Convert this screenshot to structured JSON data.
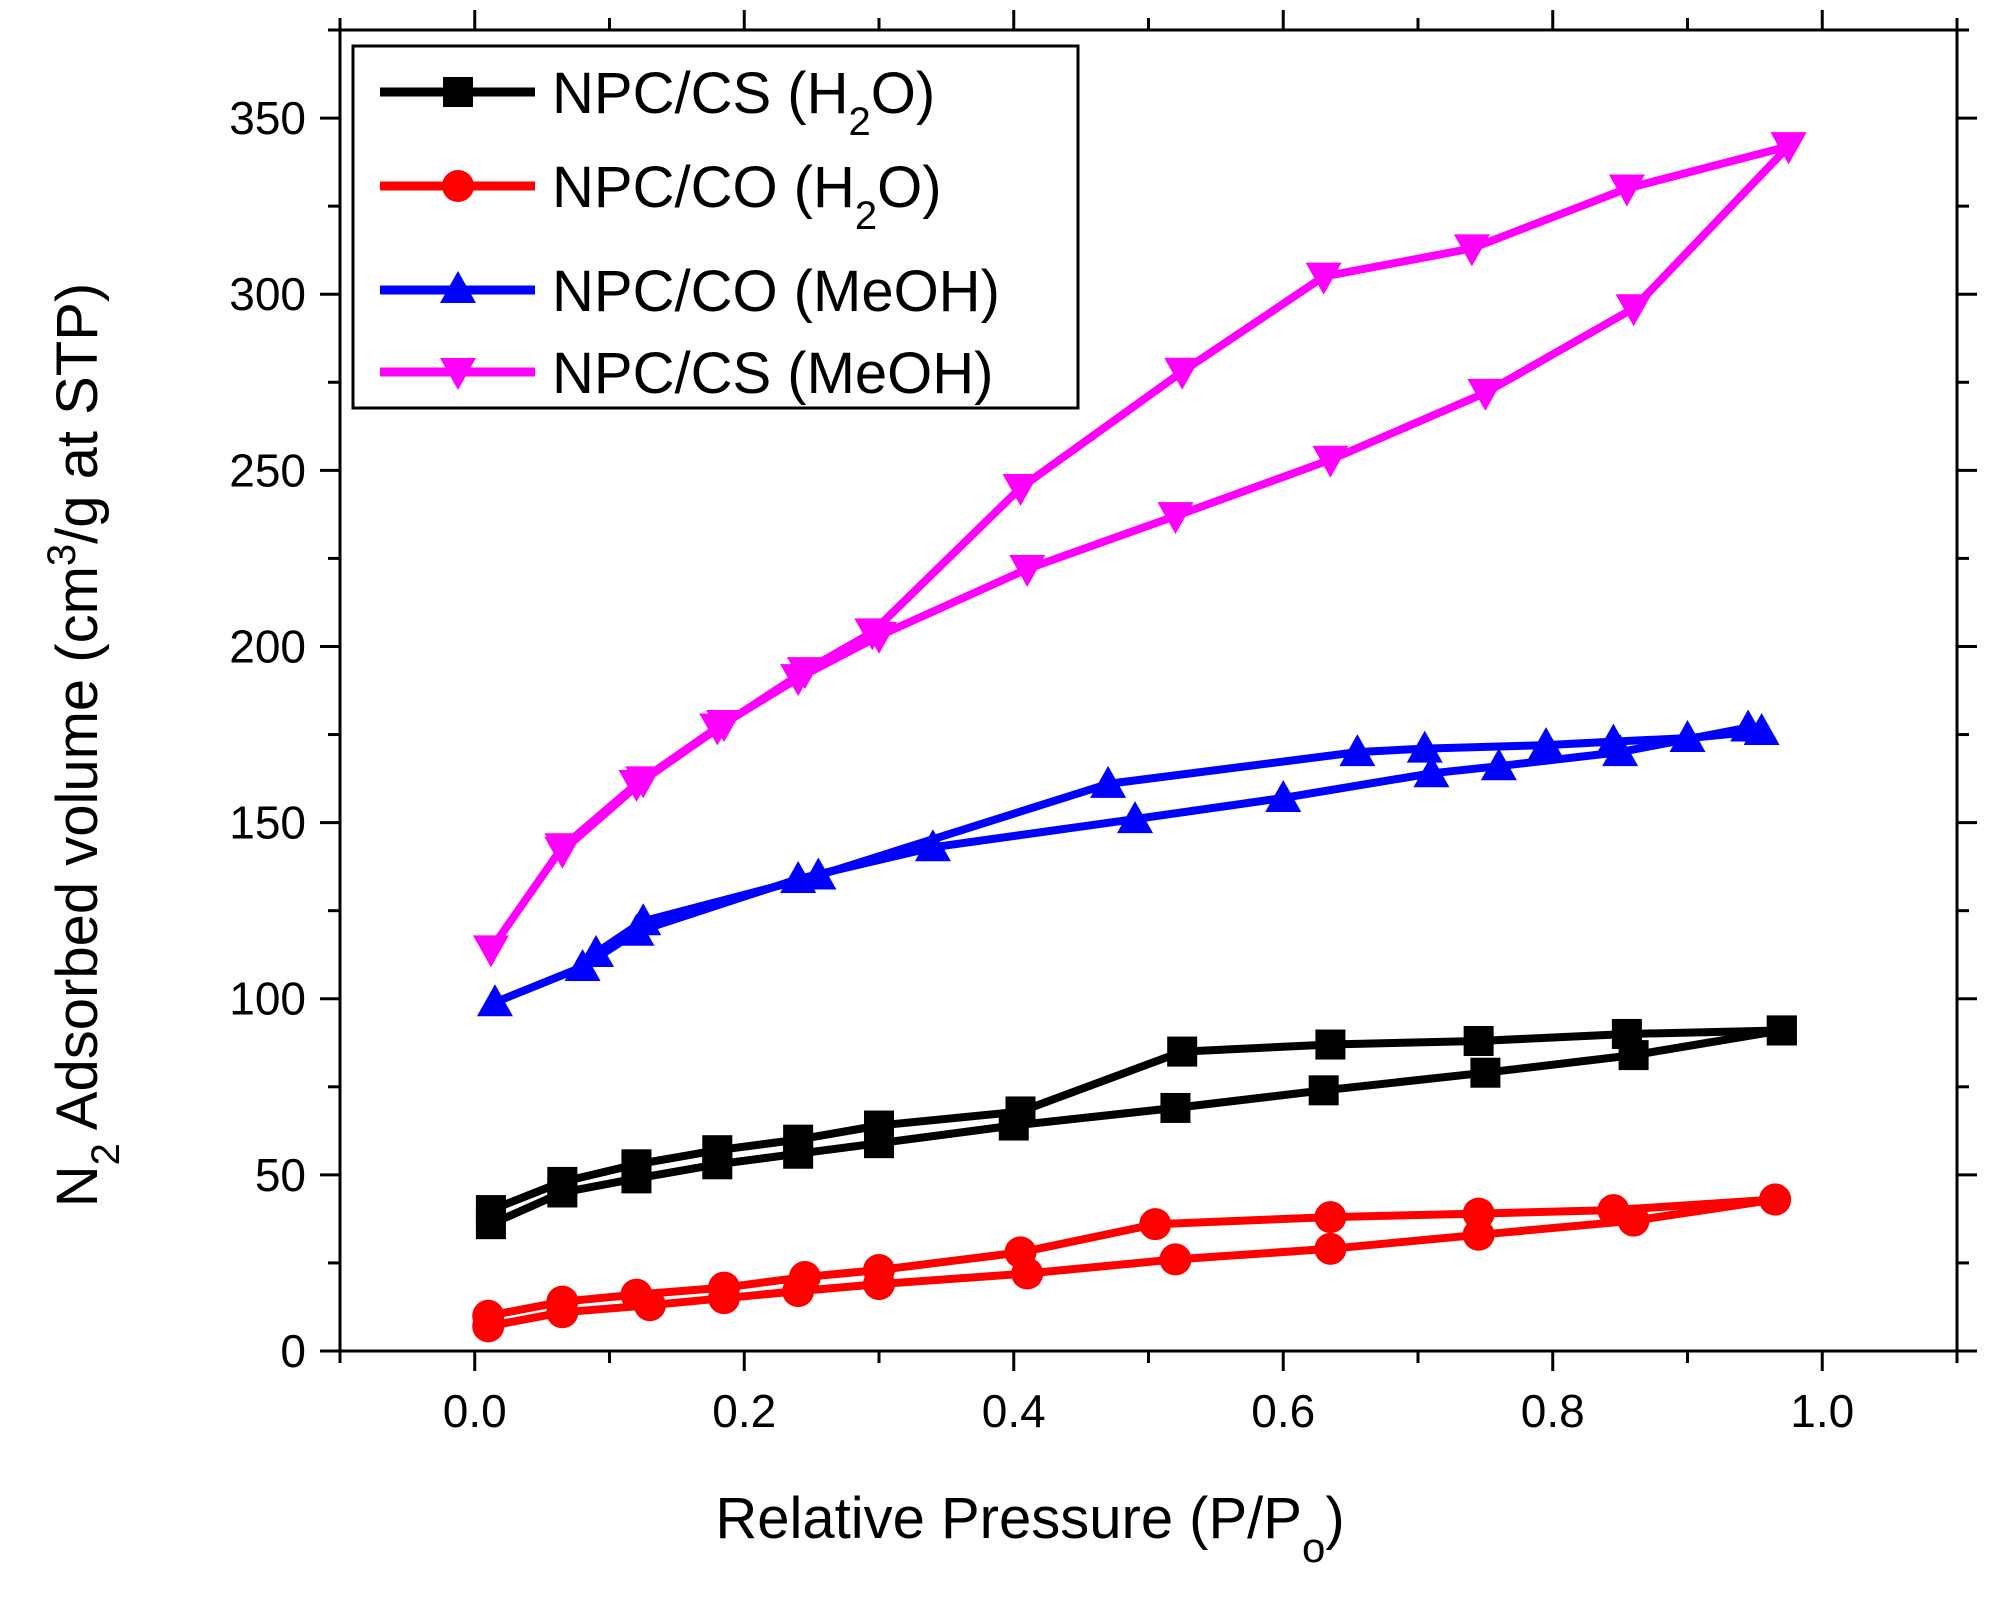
{
  "chart_data": {
    "type": "line",
    "xlabel": "Relative Pressure (P/P",
    "xlabel_sub": "o",
    "xlabel_end": ")",
    "ylabel_n": "N",
    "ylabel_n_sub": "2",
    "ylabel_mid": " Adsorbed volume (cm",
    "ylabel_sup": "3",
    "ylabel_end": "/g at STP)",
    "xlim": [
      -0.1,
      1.1
    ],
    "ylim": [
      0,
      375
    ],
    "xticks": [
      0.0,
      0.2,
      0.4,
      0.6,
      0.8,
      1.0
    ],
    "xtick_labels": [
      "0.0",
      "0.2",
      "0.4",
      "0.6",
      "0.8",
      "1.0"
    ],
    "yticks": [
      0,
      50,
      100,
      150,
      200,
      250,
      300,
      350
    ],
    "ytick_labels": [
      "0",
      "50",
      "100",
      "150",
      "200",
      "250",
      "300",
      "350"
    ],
    "legend_position": "top-left",
    "series": [
      {
        "name": "NPC/CS (H2O)",
        "label_main": "NPC/CS (H",
        "label_sub": "2",
        "label_end": "O)",
        "color": "#000000",
        "marker": "square",
        "adsorption": {
          "x": [
            0.012,
            0.065,
            0.12,
            0.18,
            0.24,
            0.3,
            0.4,
            0.52,
            0.63,
            0.75,
            0.86,
            0.97
          ],
          "y": [
            36,
            45,
            49,
            53,
            56,
            59,
            64,
            69,
            74,
            79,
            84,
            91
          ]
        },
        "desorption": {
          "x": [
            0.97,
            0.855,
            0.745,
            0.635,
            0.525,
            0.405,
            0.3,
            0.24,
            0.18,
            0.12,
            0.065,
            0.012
          ],
          "y": [
            91,
            90,
            88,
            87,
            85,
            68,
            64,
            60,
            57,
            53,
            48,
            40
          ]
        }
      },
      {
        "name": "NPC/CO (H2O)",
        "label_main": "NPC/CO (H",
        "label_sub": "2",
        "label_end": "O)",
        "color": "#ff0000",
        "marker": "circle",
        "adsorption": {
          "x": [
            0.01,
            0.065,
            0.13,
            0.185,
            0.24,
            0.3,
            0.41,
            0.52,
            0.635,
            0.745,
            0.86,
            0.965
          ],
          "y": [
            7,
            11,
            13,
            15,
            17,
            19,
            22,
            26,
            29,
            33,
            37,
            43
          ]
        },
        "desorption": {
          "x": [
            0.965,
            0.845,
            0.745,
            0.635,
            0.505,
            0.405,
            0.3,
            0.245,
            0.185,
            0.12,
            0.065,
            0.01
          ],
          "y": [
            43,
            40,
            39,
            38,
            36,
            28,
            23,
            21,
            18,
            16,
            14,
            10
          ]
        }
      },
      {
        "name": "NPC/CO (MeOH)",
        "label_main": "NPC/CO (MeOH)",
        "label_sub": "",
        "label_end": "",
        "color": "#0000ff",
        "marker": "triangle-up",
        "adsorption": {
          "x": [
            0.015,
            0.08,
            0.12,
            0.24,
            0.34,
            0.49,
            0.6,
            0.71,
            0.76,
            0.85,
            0.945
          ],
          "y": [
            99,
            109,
            119,
            134,
            143,
            151,
            157,
            164,
            166,
            170,
            177
          ]
        },
        "desorption": {
          "x": [
            0.955,
            0.9,
            0.845,
            0.795,
            0.705,
            0.655,
            0.47,
            0.255,
            0.125,
            0.09
          ],
          "y": [
            176,
            174,
            173,
            172,
            171,
            170,
            161,
            135,
            122,
            113
          ]
        }
      },
      {
        "name": "NPC/CS (MeOH)",
        "label_main": "NPC/CS (MeOH)",
        "label_sub": "",
        "label_end": "",
        "color": "#ff00ff",
        "marker": "triangle-down",
        "adsorption": {
          "x": [
            0.012,
            0.065,
            0.12,
            0.18,
            0.24,
            0.3,
            0.41,
            0.52,
            0.635,
            0.75,
            0.86,
            0.975
          ],
          "y": [
            114,
            143,
            161,
            177,
            191,
            203,
            222,
            237,
            253,
            272,
            296,
            342
          ]
        },
        "desorption": {
          "x": [
            0.975,
            0.855,
            0.74,
            0.63,
            0.525,
            0.405,
            0.295,
            0.245,
            0.185,
            0.125,
            0.065
          ],
          "y": [
            342,
            330,
            313,
            305,
            278,
            245,
            204,
            193,
            178,
            162,
            142
          ]
        }
      }
    ]
  }
}
